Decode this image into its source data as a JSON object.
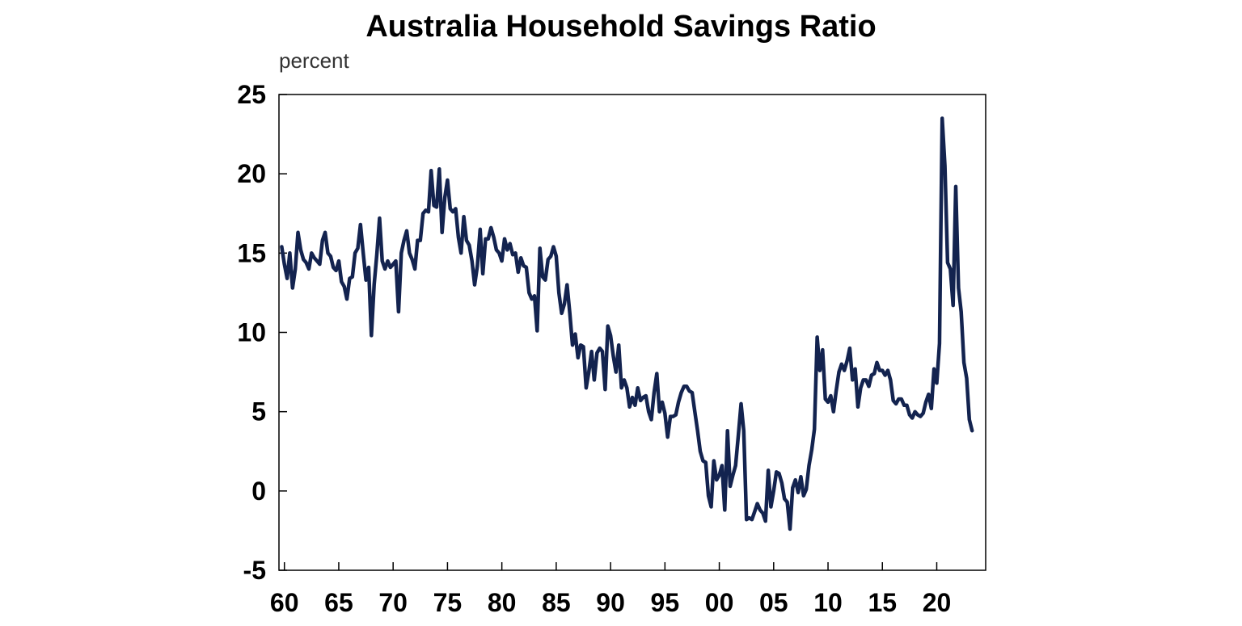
{
  "chart_data": {
    "type": "line",
    "title": "Australia Household Savings Ratio",
    "ylabel": "percent",
    "xlabel": "",
    "xlim": [
      1959.5,
      2024.5
    ],
    "ylim": [
      -5,
      25
    ],
    "yticks": [
      -5,
      0,
      5,
      10,
      15,
      20,
      25
    ],
    "xticks": [
      1960,
      1965,
      1970,
      1975,
      1980,
      1985,
      1990,
      1995,
      2000,
      2005,
      2010,
      2015,
      2020
    ],
    "xtick_labels": [
      "60",
      "65",
      "70",
      "75",
      "80",
      "85",
      "90",
      "95",
      "00",
      "05",
      "10",
      "15",
      "20"
    ],
    "grid": false,
    "legend": "none",
    "color": "#13234f",
    "series": [
      {
        "points": [
          [
            1959.75,
            15.4
          ],
          [
            1960.0,
            14.3
          ],
          [
            1960.25,
            13.4
          ],
          [
            1960.5,
            15.0
          ],
          [
            1960.75,
            12.8
          ],
          [
            1961.0,
            14.0
          ],
          [
            1961.25,
            16.3
          ],
          [
            1961.5,
            15.2
          ],
          [
            1961.75,
            14.6
          ],
          [
            1962.0,
            14.4
          ],
          [
            1962.25,
            14.0
          ],
          [
            1962.5,
            15.0
          ],
          [
            1962.75,
            14.7
          ],
          [
            1963.0,
            14.5
          ],
          [
            1963.25,
            14.3
          ],
          [
            1963.5,
            15.8
          ],
          [
            1963.75,
            16.3
          ],
          [
            1964.0,
            15.0
          ],
          [
            1964.25,
            14.8
          ],
          [
            1964.5,
            14.1
          ],
          [
            1964.75,
            13.9
          ],
          [
            1965.0,
            14.5
          ],
          [
            1965.25,
            13.2
          ],
          [
            1965.5,
            12.9
          ],
          [
            1965.75,
            12.1
          ],
          [
            1966.0,
            13.4
          ],
          [
            1966.25,
            13.5
          ],
          [
            1966.5,
            15.0
          ],
          [
            1966.75,
            15.3
          ],
          [
            1967.0,
            16.8
          ],
          [
            1967.25,
            15.0
          ],
          [
            1967.5,
            13.3
          ],
          [
            1967.75,
            14.1
          ],
          [
            1968.0,
            9.8
          ],
          [
            1968.25,
            13.0
          ],
          [
            1968.5,
            14.9
          ],
          [
            1968.75,
            17.2
          ],
          [
            1969.0,
            14.5
          ],
          [
            1969.25,
            14.0
          ],
          [
            1969.5,
            14.5
          ],
          [
            1969.75,
            14.1
          ],
          [
            1970.0,
            14.3
          ],
          [
            1970.25,
            14.5
          ],
          [
            1970.5,
            11.3
          ],
          [
            1970.75,
            15.0
          ],
          [
            1971.0,
            15.8
          ],
          [
            1971.25,
            16.4
          ],
          [
            1971.5,
            15.0
          ],
          [
            1971.75,
            14.6
          ],
          [
            1972.0,
            14.0
          ],
          [
            1972.25,
            15.8
          ],
          [
            1972.5,
            15.8
          ],
          [
            1972.75,
            17.5
          ],
          [
            1973.0,
            17.7
          ],
          [
            1973.25,
            17.6
          ],
          [
            1973.5,
            20.2
          ],
          [
            1973.75,
            18.0
          ],
          [
            1974.0,
            17.9
          ],
          [
            1974.25,
            20.3
          ],
          [
            1974.5,
            16.3
          ],
          [
            1974.75,
            18.5
          ],
          [
            1975.0,
            19.6
          ],
          [
            1975.25,
            17.8
          ],
          [
            1975.5,
            17.6
          ],
          [
            1975.75,
            17.8
          ],
          [
            1976.0,
            16.0
          ],
          [
            1976.25,
            15.0
          ],
          [
            1976.5,
            17.3
          ],
          [
            1976.75,
            15.8
          ],
          [
            1977.0,
            15.5
          ],
          [
            1977.25,
            14.5
          ],
          [
            1977.5,
            13.0
          ],
          [
            1977.75,
            14.2
          ],
          [
            1978.0,
            16.5
          ],
          [
            1978.25,
            13.7
          ],
          [
            1978.5,
            15.9
          ],
          [
            1978.75,
            15.9
          ],
          [
            1979.0,
            16.6
          ],
          [
            1979.25,
            16.0
          ],
          [
            1979.5,
            15.2
          ],
          [
            1979.75,
            15.0
          ],
          [
            1980.0,
            14.5
          ],
          [
            1980.25,
            15.9
          ],
          [
            1980.5,
            15.2
          ],
          [
            1980.75,
            15.6
          ],
          [
            1981.0,
            14.9
          ],
          [
            1981.25,
            15.0
          ],
          [
            1981.5,
            13.8
          ],
          [
            1981.75,
            14.7
          ],
          [
            1982.0,
            14.2
          ],
          [
            1982.25,
            14.1
          ],
          [
            1982.5,
            12.5
          ],
          [
            1982.75,
            12.1
          ],
          [
            1983.0,
            12.3
          ],
          [
            1983.25,
            10.1
          ],
          [
            1983.5,
            15.3
          ],
          [
            1983.75,
            13.5
          ],
          [
            1984.0,
            13.3
          ],
          [
            1984.25,
            14.6
          ],
          [
            1984.5,
            14.8
          ],
          [
            1984.75,
            15.4
          ],
          [
            1985.0,
            14.8
          ],
          [
            1985.25,
            12.5
          ],
          [
            1985.5,
            11.2
          ],
          [
            1985.75,
            11.8
          ],
          [
            1986.0,
            13.0
          ],
          [
            1986.25,
            11.2
          ],
          [
            1986.5,
            9.2
          ],
          [
            1986.75,
            9.9
          ],
          [
            1987.0,
            8.4
          ],
          [
            1987.25,
            9.2
          ],
          [
            1987.5,
            9.1
          ],
          [
            1987.75,
            6.5
          ],
          [
            1988.0,
            7.5
          ],
          [
            1988.25,
            8.8
          ],
          [
            1988.5,
            7.0
          ],
          [
            1988.75,
            8.7
          ],
          [
            1989.0,
            9.0
          ],
          [
            1989.25,
            8.8
          ],
          [
            1989.5,
            6.4
          ],
          [
            1989.75,
            10.4
          ],
          [
            1990.0,
            9.8
          ],
          [
            1990.25,
            8.5
          ],
          [
            1990.5,
            7.5
          ],
          [
            1990.75,
            9.2
          ],
          [
            1991.0,
            6.5
          ],
          [
            1991.25,
            7.0
          ],
          [
            1991.5,
            6.5
          ],
          [
            1991.75,
            5.3
          ],
          [
            1992.0,
            5.9
          ],
          [
            1992.25,
            5.4
          ],
          [
            1992.5,
            6.5
          ],
          [
            1992.75,
            5.7
          ],
          [
            1993.0,
            5.9
          ],
          [
            1993.25,
            6.0
          ],
          [
            1993.5,
            5.0
          ],
          [
            1993.75,
            4.5
          ],
          [
            1994.0,
            6.2
          ],
          [
            1994.25,
            7.4
          ],
          [
            1994.5,
            5.0
          ],
          [
            1994.75,
            5.6
          ],
          [
            1995.0,
            4.9
          ],
          [
            1995.25,
            3.4
          ],
          [
            1995.5,
            4.7
          ],
          [
            1995.75,
            4.7
          ],
          [
            1996.0,
            4.8
          ],
          [
            1996.25,
            5.6
          ],
          [
            1996.5,
            6.2
          ],
          [
            1996.75,
            6.6
          ],
          [
            1997.0,
            6.6
          ],
          [
            1997.25,
            6.3
          ],
          [
            1997.5,
            6.2
          ],
          [
            1997.75,
            5.0
          ],
          [
            1998.0,
            3.8
          ],
          [
            1998.25,
            2.5
          ],
          [
            1998.5,
            1.9
          ],
          [
            1998.75,
            1.8
          ],
          [
            1999.0,
            -0.3
          ],
          [
            1999.25,
            -1.0
          ],
          [
            1999.5,
            1.9
          ],
          [
            1999.75,
            0.7
          ],
          [
            2000.0,
            1.0
          ],
          [
            2000.25,
            1.6
          ],
          [
            2000.5,
            -1.2
          ],
          [
            2000.75,
            3.8
          ],
          [
            2001.0,
            0.3
          ],
          [
            2001.25,
            1.0
          ],
          [
            2001.5,
            1.6
          ],
          [
            2001.75,
            3.5
          ],
          [
            2002.0,
            5.5
          ],
          [
            2002.25,
            3.8
          ],
          [
            2002.5,
            -1.8
          ],
          [
            2002.75,
            -1.7
          ],
          [
            2003.0,
            -1.8
          ],
          [
            2003.25,
            -1.3
          ],
          [
            2003.5,
            -0.8
          ],
          [
            2003.75,
            -1.2
          ],
          [
            2004.0,
            -1.4
          ],
          [
            2004.25,
            -1.9
          ],
          [
            2004.5,
            1.3
          ],
          [
            2004.75,
            -1.0
          ],
          [
            2005.0,
            0.0
          ],
          [
            2005.25,
            1.2
          ],
          [
            2005.5,
            1.1
          ],
          [
            2005.75,
            0.5
          ],
          [
            2006.0,
            -0.5
          ],
          [
            2006.25,
            -0.7
          ],
          [
            2006.5,
            -2.4
          ],
          [
            2006.75,
            0.2
          ],
          [
            2007.0,
            0.7
          ],
          [
            2007.25,
            -0.1
          ],
          [
            2007.5,
            0.9
          ],
          [
            2007.75,
            -0.3
          ],
          [
            2008.0,
            0.1
          ],
          [
            2008.25,
            1.6
          ],
          [
            2008.5,
            2.6
          ],
          [
            2008.75,
            3.9
          ],
          [
            2009.0,
            9.7
          ],
          [
            2009.25,
            7.6
          ],
          [
            2009.5,
            8.9
          ],
          [
            2009.75,
            5.8
          ],
          [
            2010.0,
            5.6
          ],
          [
            2010.25,
            6.0
          ],
          [
            2010.5,
            5.0
          ],
          [
            2010.75,
            6.3
          ],
          [
            2011.0,
            7.5
          ],
          [
            2011.25,
            8.0
          ],
          [
            2011.5,
            7.6
          ],
          [
            2011.75,
            8.2
          ],
          [
            2012.0,
            9.0
          ],
          [
            2012.25,
            7.0
          ],
          [
            2012.5,
            7.7
          ],
          [
            2012.75,
            5.3
          ],
          [
            2013.0,
            6.5
          ],
          [
            2013.25,
            7.0
          ],
          [
            2013.5,
            7.0
          ],
          [
            2013.75,
            6.6
          ],
          [
            2014.0,
            7.3
          ],
          [
            2014.25,
            7.4
          ],
          [
            2014.5,
            8.1
          ],
          [
            2014.75,
            7.6
          ],
          [
            2015.0,
            7.6
          ],
          [
            2015.25,
            7.3
          ],
          [
            2015.5,
            7.6
          ],
          [
            2015.75,
            7.0
          ],
          [
            2016.0,
            5.7
          ],
          [
            2016.25,
            5.5
          ],
          [
            2016.5,
            5.8
          ],
          [
            2016.75,
            5.8
          ],
          [
            2017.0,
            5.4
          ],
          [
            2017.25,
            5.4
          ],
          [
            2017.5,
            4.8
          ],
          [
            2017.75,
            4.6
          ],
          [
            2018.0,
            5.0
          ],
          [
            2018.25,
            4.8
          ],
          [
            2018.5,
            4.7
          ],
          [
            2018.75,
            4.9
          ],
          [
            2019.0,
            5.6
          ],
          [
            2019.25,
            6.1
          ],
          [
            2019.5,
            5.2
          ],
          [
            2019.75,
            7.7
          ],
          [
            2020.0,
            6.8
          ],
          [
            2020.25,
            9.3
          ],
          [
            2020.5,
            23.5
          ],
          [
            2020.75,
            20.5
          ],
          [
            2021.0,
            14.4
          ],
          [
            2021.25,
            14.0
          ],
          [
            2021.5,
            11.7
          ],
          [
            2021.75,
            19.2
          ],
          [
            2022.0,
            12.8
          ],
          [
            2022.25,
            11.3
          ],
          [
            2022.5,
            8.1
          ],
          [
            2022.75,
            7.1
          ],
          [
            2023.0,
            4.5
          ],
          [
            2023.25,
            3.8
          ]
        ]
      }
    ]
  }
}
